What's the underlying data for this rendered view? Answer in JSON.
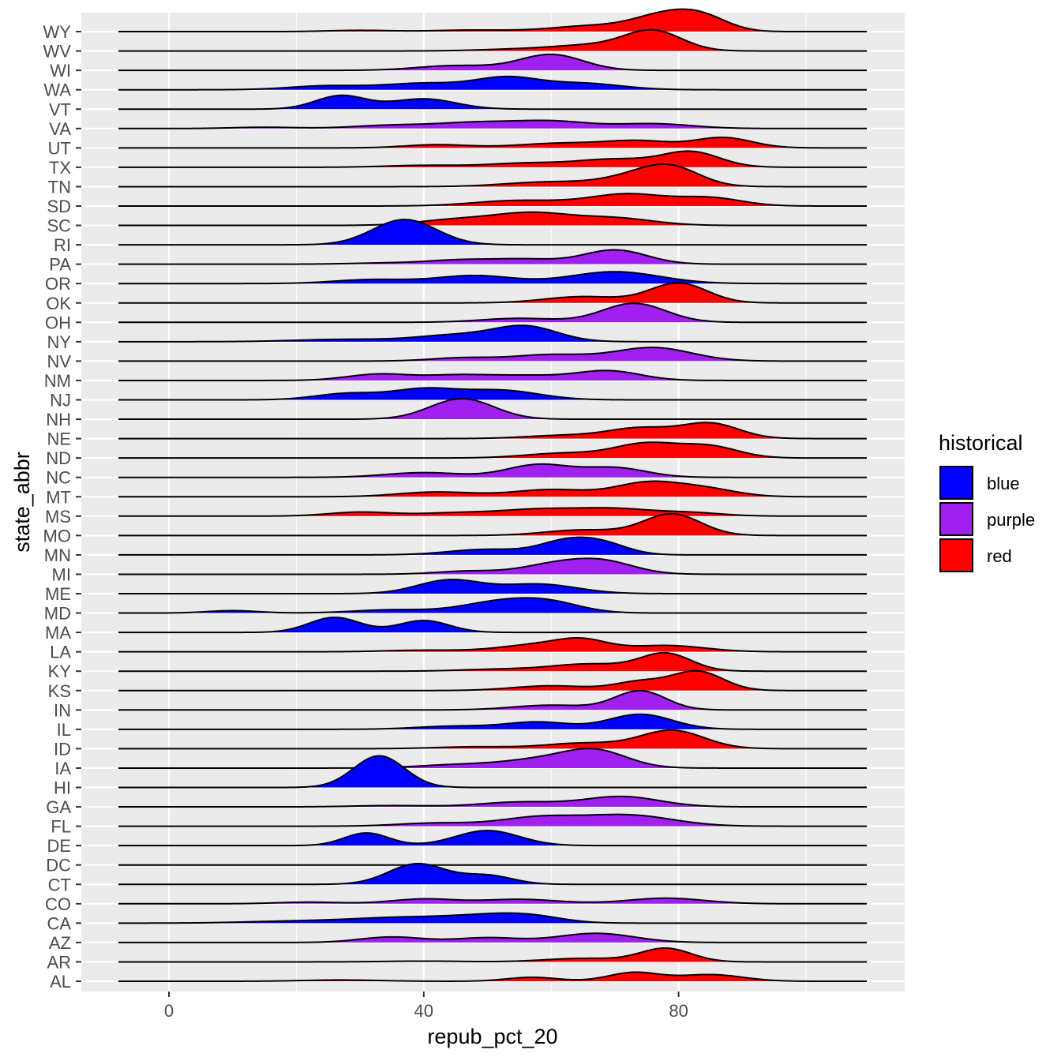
{
  "chart_data": {
    "type": "ridgeline",
    "xlabel": "repub_pct_20",
    "ylabel": "state_abbr",
    "xlim": [
      -13,
      116
    ],
    "x_ticks": [
      0,
      40,
      80
    ],
    "x_minor_ticks": [
      20,
      60,
      100
    ],
    "grid": true,
    "legend": {
      "title": "historical",
      "position": "right",
      "entries": [
        {
          "key": "blue",
          "label": "blue",
          "color": "#0000FF"
        },
        {
          "key": "purple",
          "label": "purple",
          "color": "#A020F0"
        },
        {
          "key": "red",
          "label": "red",
          "color": "#FF0000"
        }
      ]
    },
    "states": [
      {
        "state": "AL",
        "group": "red",
        "peaks": [
          [
            27,
            6,
            0.08
          ],
          [
            57,
            4,
            0.25
          ],
          [
            73,
            4,
            0.55
          ],
          [
            85,
            5,
            0.42
          ]
        ]
      },
      {
        "state": "AR",
        "group": "red",
        "peaks": [
          [
            40,
            6,
            0.05
          ],
          [
            65,
            6,
            0.22
          ],
          [
            78,
            4,
            0.85
          ]
        ]
      },
      {
        "state": "AZ",
        "group": "purple",
        "peaks": [
          [
            35,
            5,
            0.35
          ],
          [
            50,
            5,
            0.3
          ],
          [
            67,
            6,
            0.58
          ]
        ]
      },
      {
        "state": "CA",
        "group": "blue",
        "peaks": [
          [
            20,
            8,
            0.12
          ],
          [
            37,
            8,
            0.35
          ],
          [
            50,
            6,
            0.38
          ],
          [
            57,
            5,
            0.35
          ]
        ]
      },
      {
        "state": "CO",
        "group": "purple",
        "peaks": [
          [
            22,
            5,
            0.1
          ],
          [
            40,
            5,
            0.3
          ],
          [
            55,
            6,
            0.28
          ],
          [
            78,
            6,
            0.35
          ]
        ]
      },
      {
        "state": "CT",
        "group": "blue",
        "peaks": [
          [
            39,
            4.5,
            1.3
          ],
          [
            50,
            4,
            0.55
          ]
        ]
      },
      {
        "state": "DC",
        "group": "blue",
        "peaks": []
      },
      {
        "state": "DE",
        "group": "blue",
        "peaks": [
          [
            31,
            3.5,
            0.8
          ],
          [
            50,
            5,
            0.95
          ]
        ]
      },
      {
        "state": "FL",
        "group": "purple",
        "peaks": [
          [
            42,
            6,
            0.2
          ],
          [
            58,
            6,
            0.55
          ],
          [
            72,
            7,
            0.7
          ]
        ]
      },
      {
        "state": "GA",
        "group": "purple",
        "peaks": [
          [
            35,
            6,
            0.08
          ],
          [
            55,
            6,
            0.3
          ],
          [
            71,
            6,
            0.65
          ]
        ]
      },
      {
        "state": "HI",
        "group": "blue",
        "peaks": [
          [
            33,
            4,
            2.0
          ]
        ]
      },
      {
        "state": "IA",
        "group": "purple",
        "peaks": [
          [
            45,
            6,
            0.2
          ],
          [
            58,
            6,
            0.5
          ],
          [
            67,
            5,
            1.05
          ]
        ]
      },
      {
        "state": "ID",
        "group": "red",
        "peaks": [
          [
            48,
            6,
            0.12
          ],
          [
            65,
            6,
            0.35
          ],
          [
            79,
            5,
            1.15
          ]
        ]
      },
      {
        "state": "IL",
        "group": "blue",
        "peaks": [
          [
            45,
            6,
            0.2
          ],
          [
            58,
            5,
            0.45
          ],
          [
            74,
            5,
            0.95
          ]
        ]
      },
      {
        "state": "IN",
        "group": "purple",
        "peaks": [
          [
            60,
            6,
            0.3
          ],
          [
            74,
            4,
            1.2
          ]
        ]
      },
      {
        "state": "KS",
        "group": "red",
        "peaks": [
          [
            60,
            6,
            0.3
          ],
          [
            74,
            4,
            0.55
          ],
          [
            83,
            4,
            1.2
          ]
        ]
      },
      {
        "state": "KY",
        "group": "red",
        "peaks": [
          [
            52,
            6,
            0.12
          ],
          [
            66,
            6,
            0.45
          ],
          [
            78,
            4,
            1.1
          ]
        ]
      },
      {
        "state": "LA",
        "group": "red",
        "peaks": [
          [
            40,
            6,
            0.1
          ],
          [
            58,
            6,
            0.45
          ],
          [
            65,
            4,
            0.6
          ],
          [
            78,
            6,
            0.4
          ]
        ]
      },
      {
        "state": "MA",
        "group": "blue",
        "peaks": [
          [
            26,
            4,
            0.95
          ],
          [
            40,
            4,
            0.75
          ]
        ]
      },
      {
        "state": "MD",
        "group": "blue",
        "peaks": [
          [
            10,
            4,
            0.15
          ],
          [
            35,
            6,
            0.2
          ],
          [
            52,
            6,
            0.7
          ],
          [
            60,
            5,
            0.55
          ]
        ]
      },
      {
        "state": "ME",
        "group": "blue",
        "peaks": [
          [
            44,
            5,
            0.85
          ],
          [
            58,
            6,
            0.6
          ]
        ]
      },
      {
        "state": "MI",
        "group": "purple",
        "peaks": [
          [
            47,
            5,
            0.2
          ],
          [
            60,
            5,
            0.55
          ],
          [
            68,
            5,
            0.8
          ]
        ]
      },
      {
        "state": "MN",
        "group": "blue",
        "peaks": [
          [
            50,
            6,
            0.35
          ],
          [
            62,
            4,
            0.75
          ],
          [
            68,
            4,
            0.7
          ]
        ]
      },
      {
        "state": "MO",
        "group": "red",
        "peaks": [
          [
            65,
            6,
            0.35
          ],
          [
            79,
            4.5,
            1.35
          ]
        ]
      },
      {
        "state": "MS",
        "group": "red",
        "peaks": [
          [
            30,
            5,
            0.25
          ],
          [
            45,
            6,
            0.2
          ],
          [
            58,
            6,
            0.4
          ],
          [
            70,
            6,
            0.45
          ],
          [
            82,
            5,
            0.2
          ]
        ]
      },
      {
        "state": "MT",
        "group": "red",
        "peaks": [
          [
            42,
            6,
            0.3
          ],
          [
            60,
            6,
            0.45
          ],
          [
            75,
            5,
            0.85
          ],
          [
            84,
            5,
            0.5
          ]
        ]
      },
      {
        "state": "NC",
        "group": "purple",
        "peaks": [
          [
            40,
            6,
            0.3
          ],
          [
            58,
            5,
            0.8
          ],
          [
            70,
            5,
            0.6
          ]
        ]
      },
      {
        "state": "ND",
        "group": "red",
        "peaks": [
          [
            62,
            6,
            0.3
          ],
          [
            75,
            5,
            0.9
          ],
          [
            85,
            4.5,
            0.7
          ]
        ]
      },
      {
        "state": "NE",
        "group": "red",
        "peaks": [
          [
            62,
            6,
            0.2
          ],
          [
            74,
            5,
            0.65
          ],
          [
            85,
            4.5,
            0.95
          ]
        ]
      },
      {
        "state": "NH",
        "group": "purple",
        "peaks": [
          [
            46,
            5,
            1.3
          ]
        ]
      },
      {
        "state": "NJ",
        "group": "blue",
        "peaks": [
          [
            28,
            5,
            0.4
          ],
          [
            40,
            5,
            0.65
          ],
          [
            52,
            6,
            0.6
          ]
        ]
      },
      {
        "state": "NM",
        "group": "purple",
        "peaks": [
          [
            33,
            5,
            0.4
          ],
          [
            45,
            5,
            0.3
          ],
          [
            56,
            6,
            0.3
          ],
          [
            69,
            5,
            0.6
          ]
        ]
      },
      {
        "state": "NV",
        "group": "purple",
        "peaks": [
          [
            46,
            5,
            0.2
          ],
          [
            60,
            6,
            0.4
          ],
          [
            76,
            6,
            0.85
          ]
        ]
      },
      {
        "state": "NY",
        "group": "blue",
        "peaks": [
          [
            28,
            8,
            0.15
          ],
          [
            45,
            6,
            0.4
          ],
          [
            56,
            5,
            0.95
          ]
        ]
      },
      {
        "state": "OH",
        "group": "purple",
        "peaks": [
          [
            55,
            6,
            0.25
          ],
          [
            73,
            5,
            1.2
          ]
        ]
      },
      {
        "state": "OK",
        "group": "red",
        "peaks": [
          [
            65,
            6,
            0.4
          ],
          [
            80,
            4.5,
            1.25
          ]
        ]
      },
      {
        "state": "OR",
        "group": "blue",
        "peaks": [
          [
            32,
            6,
            0.25
          ],
          [
            48,
            6,
            0.5
          ],
          [
            70,
            7,
            0.75
          ]
        ]
      },
      {
        "state": "PA",
        "group": "purple",
        "peaks": [
          [
            35,
            6,
            0.08
          ],
          [
            46,
            5,
            0.25
          ],
          [
            56,
            5,
            0.3
          ],
          [
            70,
            5,
            0.9
          ]
        ]
      },
      {
        "state": "RI",
        "group": "blue",
        "peaks": [
          [
            37,
            5,
            1.6
          ]
        ]
      },
      {
        "state": "SC",
        "group": "red",
        "peaks": [
          [
            45,
            6,
            0.35
          ],
          [
            57,
            6,
            0.75
          ],
          [
            70,
            6,
            0.45
          ]
        ]
      },
      {
        "state": "SD",
        "group": "red",
        "peaks": [
          [
            55,
            7,
            0.35
          ],
          [
            72,
            6,
            0.75
          ],
          [
            85,
            5,
            0.5
          ]
        ]
      },
      {
        "state": "TN",
        "group": "red",
        "peaks": [
          [
            60,
            7,
            0.3
          ],
          [
            73,
            5,
            0.55
          ],
          [
            79,
            4.5,
            1.1
          ]
        ]
      },
      {
        "state": "TX",
        "group": "red",
        "peaks": [
          [
            40,
            6,
            0.12
          ],
          [
            56,
            6,
            0.25
          ],
          [
            70,
            6,
            0.5
          ],
          [
            82,
            4.5,
            0.95
          ]
        ]
      },
      {
        "state": "UT",
        "group": "red",
        "peaks": [
          [
            42,
            5,
            0.2
          ],
          [
            62,
            7,
            0.3
          ],
          [
            74,
            5,
            0.4
          ],
          [
            87,
            4.5,
            0.65
          ]
        ]
      },
      {
        "state": "VA",
        "group": "purple",
        "peaks": [
          [
            15,
            5,
            0.08
          ],
          [
            35,
            6,
            0.2
          ],
          [
            48,
            6,
            0.35
          ],
          [
            60,
            6,
            0.45
          ],
          [
            76,
            6,
            0.3
          ]
        ]
      },
      {
        "state": "VT",
        "group": "blue",
        "peaks": [
          [
            27,
            4,
            0.85
          ],
          [
            40,
            5,
            0.65
          ]
        ]
      },
      {
        "state": "WA",
        "group": "blue",
        "peaks": [
          [
            25,
            6,
            0.25
          ],
          [
            40,
            6,
            0.4
          ],
          [
            53,
            5,
            0.75
          ],
          [
            65,
            6,
            0.4
          ]
        ]
      },
      {
        "state": "WI",
        "group": "purple",
        "peaks": [
          [
            45,
            6,
            0.3
          ],
          [
            60,
            5,
            1.0
          ]
        ]
      },
      {
        "state": "WV",
        "group": "red",
        "peaks": [
          [
            54,
            6,
            0.1
          ],
          [
            66,
            6,
            0.35
          ],
          [
            76,
            4.5,
            1.25
          ]
        ]
      },
      {
        "state": "WY",
        "group": "red",
        "peaks": [
          [
            30,
            5,
            0.08
          ],
          [
            48,
            6,
            0.1
          ],
          [
            66,
            6,
            0.35
          ],
          [
            78,
            5,
            1.05
          ],
          [
            84,
            4,
            0.7
          ]
        ]
      }
    ]
  }
}
